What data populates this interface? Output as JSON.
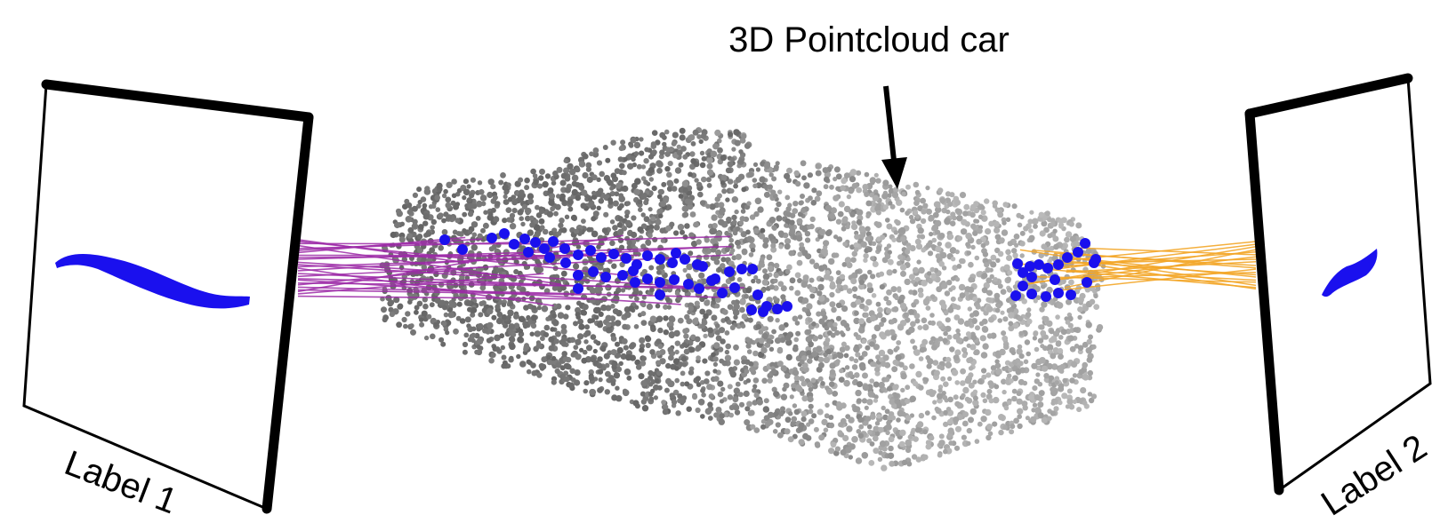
{
  "title": "3D Pointcloud car",
  "labels": {
    "left": "Label 1",
    "right": "Label 2"
  },
  "colors": {
    "frame": "#000000",
    "stroke": "#1a10ee",
    "left_rays": "#9c2aa7",
    "right_rays": "#f3a628",
    "points_dark": "#6f6f6f",
    "points_light": "#a9a9a9",
    "highlight_points": "#1a10ee"
  },
  "icons": {
    "pointer": "arrow-down-icon"
  }
}
